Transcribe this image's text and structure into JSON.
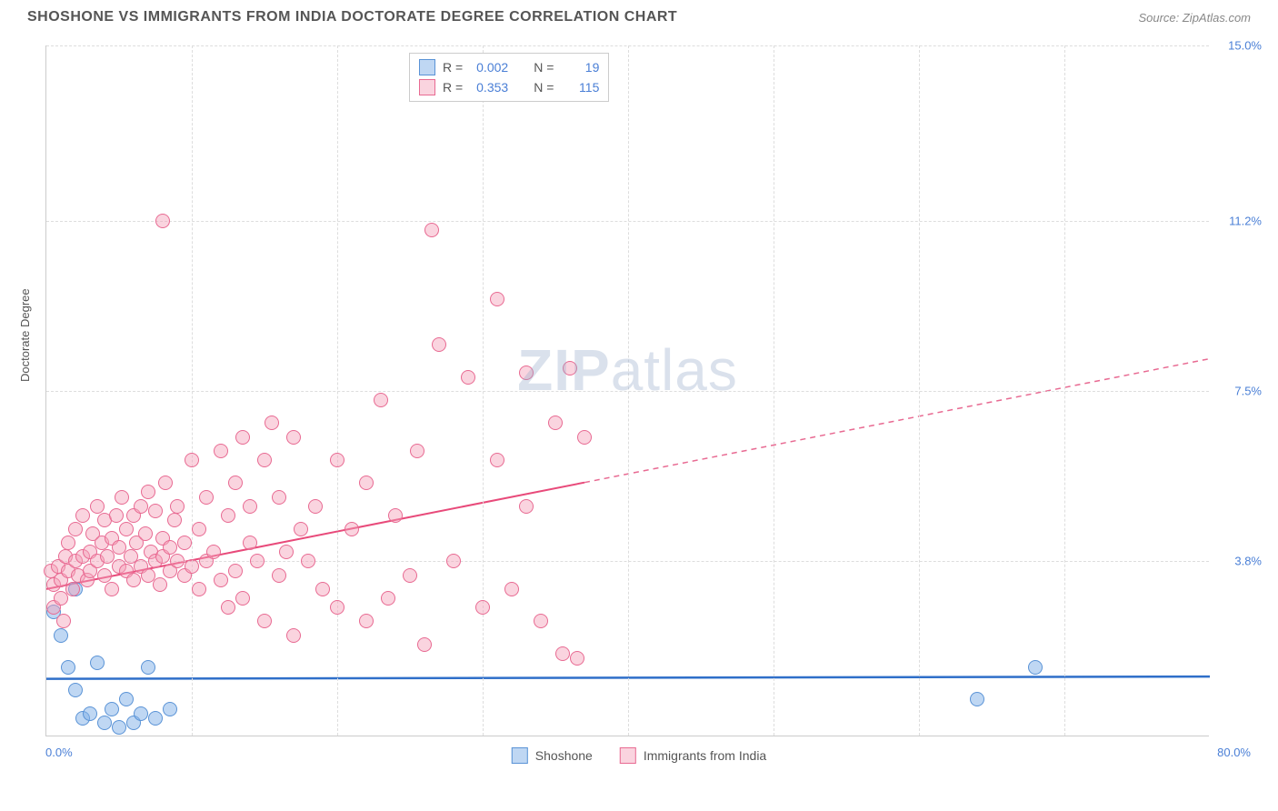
{
  "header": {
    "title": "SHOSHONE VS IMMIGRANTS FROM INDIA DOCTORATE DEGREE CORRELATION CHART",
    "source": "Source: ZipAtlas.com"
  },
  "watermark": {
    "bold": "ZIP",
    "light": "atlas"
  },
  "chart": {
    "type": "scatter",
    "ylabel": "Doctorate Degree",
    "axis_label_fontsize": 13,
    "title_color": "#555555",
    "tick_color": "#4a7fd6",
    "background_color": "#ffffff",
    "grid_color": "#dddddd",
    "border_color": "#cccccc",
    "xlim": [
      0,
      80
    ],
    "ylim": [
      0,
      15
    ],
    "x_axis_min_label": "0.0%",
    "x_axis_max_label": "80.0%",
    "y_ticks": [
      {
        "value": 3.8,
        "label": "3.8%"
      },
      {
        "value": 7.5,
        "label": "7.5%"
      },
      {
        "value": 11.2,
        "label": "11.2%"
      },
      {
        "value": 15.0,
        "label": "15.0%"
      }
    ],
    "x_gridlines": [
      10,
      20,
      30,
      40,
      50,
      60,
      70
    ],
    "marker_radius": 8,
    "marker_border_width": 1.5,
    "series": [
      {
        "key": "shoshone",
        "name": "Shoshone",
        "fill": "rgba(128,176,232,0.5)",
        "stroke": "#5a93d6",
        "r_label": "R = ",
        "r_value": "0.002",
        "n_label": "N = ",
        "n_value": "19",
        "trend": {
          "y_at_xmin": 1.25,
          "y_at_xmax": 1.3,
          "x_data_max": 80,
          "solid_color": "#2f6fc9",
          "solid_width": 2.5
        },
        "points": [
          {
            "x": 0.5,
            "y": 2.7
          },
          {
            "x": 1.0,
            "y": 2.2
          },
          {
            "x": 1.5,
            "y": 1.5
          },
          {
            "x": 2.0,
            "y": 1.0
          },
          {
            "x": 2.0,
            "y": 3.2
          },
          {
            "x": 2.5,
            "y": 0.4
          },
          {
            "x": 3.0,
            "y": 0.5
          },
          {
            "x": 3.5,
            "y": 1.6
          },
          {
            "x": 4.0,
            "y": 0.3
          },
          {
            "x": 4.5,
            "y": 0.6
          },
          {
            "x": 5.0,
            "y": 0.2
          },
          {
            "x": 5.5,
            "y": 0.8
          },
          {
            "x": 6.0,
            "y": 0.3
          },
          {
            "x": 6.5,
            "y": 0.5
          },
          {
            "x": 7.0,
            "y": 1.5
          },
          {
            "x": 7.5,
            "y": 0.4
          },
          {
            "x": 8.5,
            "y": 0.6
          },
          {
            "x": 64.0,
            "y": 0.8
          },
          {
            "x": 68.0,
            "y": 1.5
          }
        ]
      },
      {
        "key": "india",
        "name": "Immigrants from India",
        "fill": "rgba(244,160,185,0.45)",
        "stroke": "#e86a92",
        "r_label": "R = ",
        "r_value": "0.353",
        "n_label": "N = ",
        "n_value": "115",
        "trend": {
          "y_at_xmin": 3.2,
          "y_at_xmax": 8.2,
          "x_data_max": 37,
          "solid_color": "#e84a7a",
          "solid_width": 2,
          "dash_color": "#e86a92"
        },
        "points": [
          {
            "x": 0.3,
            "y": 3.6
          },
          {
            "x": 0.5,
            "y": 3.3
          },
          {
            "x": 0.5,
            "y": 2.8
          },
          {
            "x": 0.8,
            "y": 3.7
          },
          {
            "x": 1.0,
            "y": 3.4
          },
          {
            "x": 1.0,
            "y": 3.0
          },
          {
            "x": 1.2,
            "y": 2.5
          },
          {
            "x": 1.3,
            "y": 3.9
          },
          {
            "x": 1.5,
            "y": 3.6
          },
          {
            "x": 1.5,
            "y": 4.2
          },
          {
            "x": 1.8,
            "y": 3.2
          },
          {
            "x": 2.0,
            "y": 3.8
          },
          {
            "x": 2.0,
            "y": 4.5
          },
          {
            "x": 2.2,
            "y": 3.5
          },
          {
            "x": 2.5,
            "y": 3.9
          },
          {
            "x": 2.5,
            "y": 4.8
          },
          {
            "x": 2.8,
            "y": 3.4
          },
          {
            "x": 3.0,
            "y": 4.0
          },
          {
            "x": 3.0,
            "y": 3.6
          },
          {
            "x": 3.2,
            "y": 4.4
          },
          {
            "x": 3.5,
            "y": 3.8
          },
          {
            "x": 3.5,
            "y": 5.0
          },
          {
            "x": 3.8,
            "y": 4.2
          },
          {
            "x": 4.0,
            "y": 3.5
          },
          {
            "x": 4.0,
            "y": 4.7
          },
          {
            "x": 4.2,
            "y": 3.9
          },
          {
            "x": 4.5,
            "y": 4.3
          },
          {
            "x": 4.5,
            "y": 3.2
          },
          {
            "x": 4.8,
            "y": 4.8
          },
          {
            "x": 5.0,
            "y": 3.7
          },
          {
            "x": 5.0,
            "y": 4.1
          },
          {
            "x": 5.2,
            "y": 5.2
          },
          {
            "x": 5.5,
            "y": 3.6
          },
          {
            "x": 5.5,
            "y": 4.5
          },
          {
            "x": 5.8,
            "y": 3.9
          },
          {
            "x": 6.0,
            "y": 4.8
          },
          {
            "x": 6.0,
            "y": 3.4
          },
          {
            "x": 6.2,
            "y": 4.2
          },
          {
            "x": 6.5,
            "y": 5.0
          },
          {
            "x": 6.5,
            "y": 3.7
          },
          {
            "x": 6.8,
            "y": 4.4
          },
          {
            "x": 7.0,
            "y": 3.5
          },
          {
            "x": 7.0,
            "y": 5.3
          },
          {
            "x": 7.2,
            "y": 4.0
          },
          {
            "x": 7.5,
            "y": 3.8
          },
          {
            "x": 7.5,
            "y": 4.9
          },
          {
            "x": 7.8,
            "y": 3.3
          },
          {
            "x": 8.0,
            "y": 4.3
          },
          {
            "x": 8.0,
            "y": 3.9
          },
          {
            "x": 8.2,
            "y": 5.5
          },
          {
            "x": 8.0,
            "y": 11.2
          },
          {
            "x": 8.5,
            "y": 4.1
          },
          {
            "x": 8.5,
            "y": 3.6
          },
          {
            "x": 8.8,
            "y": 4.7
          },
          {
            "x": 9.0,
            "y": 3.8
          },
          {
            "x": 9.0,
            "y": 5.0
          },
          {
            "x": 9.5,
            "y": 4.2
          },
          {
            "x": 9.5,
            "y": 3.5
          },
          {
            "x": 10.0,
            "y": 6.0
          },
          {
            "x": 10.0,
            "y": 3.7
          },
          {
            "x": 10.5,
            "y": 4.5
          },
          {
            "x": 10.5,
            "y": 3.2
          },
          {
            "x": 11.0,
            "y": 5.2
          },
          {
            "x": 11.0,
            "y": 3.8
          },
          {
            "x": 11.5,
            "y": 4.0
          },
          {
            "x": 12.0,
            "y": 6.2
          },
          {
            "x": 12.0,
            "y": 3.4
          },
          {
            "x": 12.5,
            "y": 4.8
          },
          {
            "x": 12.5,
            "y": 2.8
          },
          {
            "x": 13.0,
            "y": 5.5
          },
          {
            "x": 13.0,
            "y": 3.6
          },
          {
            "x": 13.5,
            "y": 6.5
          },
          {
            "x": 13.5,
            "y": 3.0
          },
          {
            "x": 14.0,
            "y": 5.0
          },
          {
            "x": 14.0,
            "y": 4.2
          },
          {
            "x": 14.5,
            "y": 3.8
          },
          {
            "x": 15.0,
            "y": 6.0
          },
          {
            "x": 15.0,
            "y": 2.5
          },
          {
            "x": 15.5,
            "y": 6.8
          },
          {
            "x": 16.0,
            "y": 3.5
          },
          {
            "x": 16.0,
            "y": 5.2
          },
          {
            "x": 16.5,
            "y": 4.0
          },
          {
            "x": 17.0,
            "y": 6.5
          },
          {
            "x": 17.0,
            "y": 2.2
          },
          {
            "x": 17.5,
            "y": 4.5
          },
          {
            "x": 18.0,
            "y": 3.8
          },
          {
            "x": 18.5,
            "y": 5.0
          },
          {
            "x": 19.0,
            "y": 3.2
          },
          {
            "x": 20.0,
            "y": 6.0
          },
          {
            "x": 20.0,
            "y": 2.8
          },
          {
            "x": 21.0,
            "y": 4.5
          },
          {
            "x": 22.0,
            "y": 5.5
          },
          {
            "x": 22.0,
            "y": 2.5
          },
          {
            "x": 23.0,
            "y": 7.3
          },
          {
            "x": 23.5,
            "y": 3.0
          },
          {
            "x": 24.0,
            "y": 4.8
          },
          {
            "x": 25.0,
            "y": 3.5
          },
          {
            "x": 25.5,
            "y": 6.2
          },
          {
            "x": 26.0,
            "y": 2.0
          },
          {
            "x": 27.0,
            "y": 8.5
          },
          {
            "x": 26.5,
            "y": 11.0
          },
          {
            "x": 28.0,
            "y": 3.8
          },
          {
            "x": 29.0,
            "y": 7.8
          },
          {
            "x": 30.0,
            "y": 2.8
          },
          {
            "x": 31.0,
            "y": 6.0
          },
          {
            "x": 31.0,
            "y": 9.5
          },
          {
            "x": 32.0,
            "y": 3.2
          },
          {
            "x": 33.0,
            "y": 5.0
          },
          {
            "x": 33.0,
            "y": 7.9
          },
          {
            "x": 34.0,
            "y": 2.5
          },
          {
            "x": 35.0,
            "y": 6.8
          },
          {
            "x": 35.5,
            "y": 1.8
          },
          {
            "x": 36.0,
            "y": 8.0
          },
          {
            "x": 36.5,
            "y": 1.7
          },
          {
            "x": 37.0,
            "y": 6.5
          }
        ]
      }
    ]
  },
  "legend_bottom": [
    {
      "series": "shoshone",
      "label": "Shoshone"
    },
    {
      "series": "india",
      "label": "Immigrants from India"
    }
  ]
}
